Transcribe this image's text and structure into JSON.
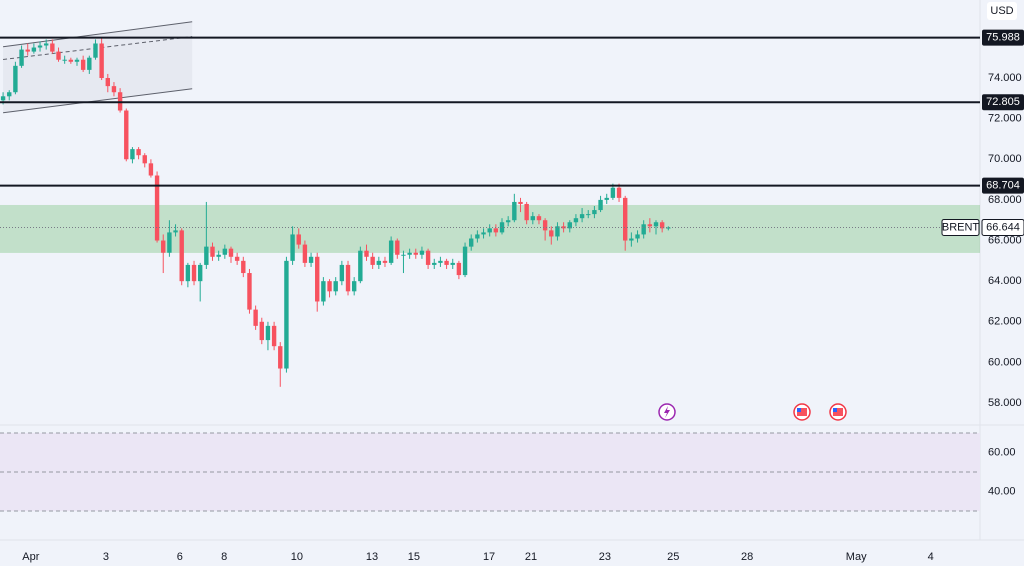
{
  "chart_data": [
    {
      "type": "candlestick",
      "symbol": "BRENT",
      "currency": "USD",
      "last_price": 66.644,
      "up_color": "#22ab94",
      "down_color": "#f7525f",
      "xlim": [
        -0.5,
        158.6
      ],
      "xticks": [
        {
          "value": 4.5,
          "label": "Apr"
        },
        {
          "value": 16.7,
          "label": "3"
        },
        {
          "value": 28.7,
          "label": "6"
        },
        {
          "value": 35.9,
          "label": "8"
        },
        {
          "value": 47.7,
          "label": "10"
        },
        {
          "value": 59.9,
          "label": "13"
        },
        {
          "value": 66.7,
          "label": "15"
        },
        {
          "value": 78.9,
          "label": "17"
        },
        {
          "value": 85.7,
          "label": "21"
        },
        {
          "value": 97.7,
          "label": "23"
        },
        {
          "value": 108.8,
          "label": "25"
        },
        {
          "value": 120.8,
          "label": "28"
        },
        {
          "value": 138.5,
          "label": "May"
        },
        {
          "value": 150.6,
          "label": "4"
        }
      ],
      "ylim": [
        56.92,
        77.84
      ],
      "yticks": [
        {
          "value": 58,
          "label": "58.000"
        },
        {
          "value": 60,
          "label": "60.000"
        },
        {
          "value": 62,
          "label": "62.000"
        },
        {
          "value": 64,
          "label": "64.000"
        },
        {
          "value": 66,
          "label": "66.000"
        },
        {
          "value": 68,
          "label": "68.000"
        },
        {
          "value": 70,
          "label": "70.000"
        },
        {
          "value": 72,
          "label": "72.000"
        },
        {
          "value": 74,
          "label": "74.000"
        }
      ],
      "levels": [
        75.988,
        72.805,
        68.704
      ],
      "zone": [
        65.39,
        67.75
      ],
      "channel": [
        [
          [
            0,
            75.54
          ],
          [
            30.7,
            76.77
          ]
        ],
        [
          [
            0,
            74.91
          ],
          [
            30.7,
            76.04
          ]
        ],
        [
          [
            0,
            72.29
          ],
          [
            30.7,
            73.47
          ]
        ]
      ],
      "ohlc": [
        [
          72.9,
          73.3,
          72.7,
          73.1
        ],
        [
          73.1,
          73.4,
          72.9,
          73.3
        ],
        [
          73.3,
          74.8,
          73.2,
          74.6
        ],
        [
          74.6,
          75.6,
          74.5,
          75.4
        ],
        [
          75.4,
          75.7,
          75.1,
          75.3
        ],
        [
          75.3,
          75.7,
          75.2,
          75.5
        ],
        [
          75.5,
          75.8,
          75.3,
          75.6
        ],
        [
          75.6,
          75.9,
          75.4,
          75.7
        ],
        [
          75.7,
          75.9,
          75.2,
          75.3
        ],
        [
          75.3,
          75.5,
          74.8,
          74.9
        ],
        [
          74.9,
          75.1,
          74.7,
          74.9
        ],
        [
          74.9,
          75.0,
          74.7,
          74.8
        ],
        [
          74.8,
          75.0,
          74.6,
          74.9
        ],
        [
          74.9,
          75.1,
          74.3,
          74.4
        ],
        [
          74.4,
          75.1,
          74.2,
          75.0
        ],
        [
          75.0,
          75.9,
          74.9,
          75.7
        ],
        [
          75.7,
          76.0,
          73.9,
          74.0
        ],
        [
          74.0,
          74.2,
          73.3,
          73.6
        ],
        [
          73.6,
          73.8,
          73.1,
          73.3
        ],
        [
          73.3,
          73.5,
          72.3,
          72.4
        ],
        [
          72.4,
          72.5,
          69.9,
          70.0
        ],
        [
          70.0,
          70.6,
          69.8,
          70.5
        ],
        [
          70.5,
          70.6,
          70.0,
          70.2
        ],
        [
          70.2,
          70.3,
          69.6,
          69.8
        ],
        [
          69.8,
          70.0,
          69.1,
          69.2
        ],
        [
          69.2,
          69.4,
          65.9,
          66.0
        ],
        [
          66.0,
          66.3,
          64.4,
          65.4
        ],
        [
          65.4,
          67.0,
          65.2,
          66.4
        ],
        [
          66.4,
          66.8,
          66.2,
          66.5
        ],
        [
          66.5,
          66.6,
          63.8,
          64.0
        ],
        [
          64.0,
          64.9,
          63.7,
          64.8
        ],
        [
          64.8,
          65.0,
          63.8,
          64.0
        ],
        [
          64.0,
          64.9,
          63.0,
          64.8
        ],
        [
          64.8,
          67.9,
          64.6,
          65.7
        ],
        [
          65.7,
          65.9,
          65.0,
          65.2
        ],
        [
          65.2,
          65.5,
          65.0,
          65.3
        ],
        [
          65.3,
          65.8,
          65.1,
          65.6
        ],
        [
          65.6,
          65.7,
          64.9,
          65.2
        ],
        [
          65.2,
          65.4,
          64.8,
          65.0
        ],
        [
          65.0,
          65.2,
          64.2,
          64.4
        ],
        [
          64.4,
          64.6,
          62.4,
          62.6
        ],
        [
          62.6,
          62.8,
          61.6,
          61.8
        ],
        [
          62.0,
          62.2,
          60.9,
          61.1
        ],
        [
          61.1,
          62.0,
          60.6,
          61.8
        ],
        [
          61.8,
          62.0,
          60.6,
          60.8
        ],
        [
          60.8,
          61.0,
          58.8,
          59.7
        ],
        [
          59.7,
          65.2,
          59.5,
          65.0
        ],
        [
          65.0,
          66.7,
          64.8,
          66.3
        ],
        [
          66.3,
          66.6,
          65.6,
          65.8
        ],
        [
          65.8,
          66.0,
          64.7,
          64.9
        ],
        [
          64.9,
          65.4,
          64.7,
          65.2
        ],
        [
          65.2,
          65.4,
          62.5,
          63.0
        ],
        [
          63.0,
          64.2,
          62.8,
          64.0
        ],
        [
          64.0,
          64.1,
          63.2,
          63.5
        ],
        [
          63.5,
          64.2,
          63.3,
          64.0
        ],
        [
          64.0,
          65.0,
          63.8,
          64.8
        ],
        [
          64.8,
          65.0,
          63.3,
          63.5
        ],
        [
          63.5,
          64.2,
          63.3,
          64.0
        ],
        [
          64.0,
          65.7,
          63.9,
          65.5
        ],
        [
          65.5,
          65.8,
          65.0,
          65.2
        ],
        [
          65.2,
          65.4,
          64.6,
          64.8
        ],
        [
          64.8,
          65.2,
          64.6,
          65.0
        ],
        [
          65.0,
          65.2,
          64.7,
          64.9
        ],
        [
          64.9,
          66.2,
          64.8,
          66.0
        ],
        [
          66.0,
          66.1,
          65.1,
          65.3
        ],
        [
          65.3,
          65.5,
          64.4,
          65.3
        ],
        [
          65.3,
          65.6,
          65.1,
          65.4
        ],
        [
          65.4,
          65.6,
          65.1,
          65.3
        ],
        [
          65.3,
          65.7,
          65.1,
          65.5
        ],
        [
          65.5,
          65.6,
          64.6,
          64.8
        ],
        [
          64.8,
          65.1,
          64.6,
          64.9
        ],
        [
          64.9,
          65.2,
          64.7,
          65.0
        ],
        [
          65.0,
          65.1,
          64.6,
          64.8
        ],
        [
          64.8,
          65.1,
          64.6,
          64.9
        ],
        [
          64.9,
          65.0,
          64.1,
          64.3
        ],
        [
          64.3,
          65.9,
          64.2,
          65.7
        ],
        [
          65.7,
          66.3,
          65.5,
          66.1
        ],
        [
          66.1,
          66.5,
          65.9,
          66.3
        ],
        [
          66.3,
          66.6,
          66.1,
          66.4
        ],
        [
          66.4,
          66.8,
          66.2,
          66.6
        ],
        [
          66.6,
          66.8,
          66.2,
          66.4
        ],
        [
          66.4,
          67.1,
          66.3,
          66.9
        ],
        [
          66.9,
          67.2,
          66.7,
          67.0
        ],
        [
          67.0,
          68.3,
          66.9,
          67.9
        ],
        [
          67.9,
          68.1,
          67.4,
          67.8
        ],
        [
          67.8,
          67.9,
          66.8,
          67.0
        ],
        [
          67.0,
          67.4,
          66.8,
          67.2
        ],
        [
          67.2,
          67.3,
          66.8,
          67.0
        ],
        [
          67.0,
          67.1,
          66.0,
          66.5
        ],
        [
          66.5,
          66.7,
          65.8,
          66.2
        ],
        [
          66.2,
          66.9,
          66.0,
          66.7
        ],
        [
          66.7,
          66.9,
          66.4,
          66.6
        ],
        [
          66.6,
          67.0,
          66.4,
          66.9
        ],
        [
          66.9,
          67.3,
          66.7,
          67.1
        ],
        [
          67.1,
          67.6,
          66.9,
          67.3
        ],
        [
          67.3,
          67.5,
          67.1,
          67.3
        ],
        [
          67.3,
          67.7,
          67.1,
          67.5
        ],
        [
          67.5,
          68.2,
          67.4,
          68.0
        ],
        [
          68.0,
          68.3,
          67.8,
          68.1
        ],
        [
          68.1,
          68.8,
          68.0,
          68.6
        ],
        [
          68.6,
          68.8,
          67.9,
          68.1
        ],
        [
          68.1,
          68.2,
          65.5,
          66.0
        ],
        [
          66.0,
          66.4,
          65.7,
          66.1
        ],
        [
          66.1,
          66.5,
          65.9,
          66.3
        ],
        [
          66.3,
          67.0,
          66.1,
          66.8
        ],
        [
          66.8,
          67.1,
          66.4,
          66.7
        ],
        [
          66.7,
          67.0,
          66.3,
          66.9
        ],
        [
          66.9,
          67.0,
          66.4,
          66.6
        ],
        [
          66.6,
          66.7,
          66.5,
          66.64
        ]
      ]
    },
    {
      "type": "indicator",
      "ylim": [
        25.4,
        74.1
      ],
      "yticks": [
        {
          "value": 60,
          "label": "60.00"
        },
        {
          "value": 40,
          "label": "40.00"
        }
      ],
      "band": [
        30,
        70
      ],
      "midline": 50,
      "band_color": "#ebe6f5"
    }
  ]
}
